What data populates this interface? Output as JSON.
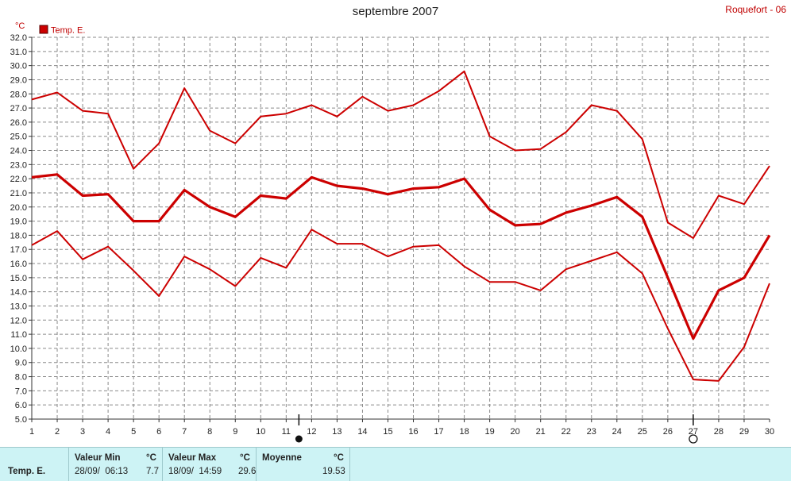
{
  "header": {
    "title": "septembre 2007",
    "station": "Roquefort - 06"
  },
  "chart_data": {
    "type": "line",
    "title": "septembre 2007",
    "ylabel": "°C",
    "ylim": [
      5.0,
      32.0
    ],
    "y_ticks": [
      "5.0",
      "6.0",
      "7.0",
      "8.0",
      "9.0",
      "10.0",
      "11.0",
      "12.0",
      "13.0",
      "14.0",
      "15.0",
      "16.0",
      "17.0",
      "18.0",
      "19.0",
      "20.0",
      "21.0",
      "22.0",
      "23.0",
      "24.0",
      "25.0",
      "26.0",
      "27.0",
      "28.0",
      "29.0",
      "30.0",
      "31.0",
      "32.0"
    ],
    "x": [
      1,
      2,
      3,
      4,
      5,
      6,
      7,
      8,
      9,
      10,
      11,
      12,
      13,
      14,
      15,
      16,
      17,
      18,
      19,
      20,
      21,
      22,
      23,
      24,
      25,
      26,
      27,
      28,
      29,
      30
    ],
    "grid": true,
    "legend": "top-left",
    "legend_label": "Temp. E.",
    "series_color": "#cc0000",
    "series": [
      {
        "values": [
          27.6,
          28.1,
          26.8,
          26.6,
          22.7,
          24.5,
          28.4,
          25.4,
          24.5,
          26.4,
          26.6,
          27.2,
          26.4,
          27.8,
          26.8,
          27.2,
          28.2,
          29.6,
          25.0,
          24.0,
          24.1,
          25.3,
          27.2,
          26.8,
          24.8,
          18.9,
          17.8,
          20.8,
          20.2,
          22.9
        ]
      },
      {
        "values": [
          22.1,
          22.3,
          20.8,
          20.9,
          19.0,
          19.0,
          21.2,
          20.0,
          19.3,
          20.8,
          20.6,
          22.1,
          21.5,
          21.3,
          20.9,
          21.3,
          21.4,
          22.0,
          19.8,
          18.7,
          18.8,
          19.6,
          20.1,
          20.7,
          19.3,
          15.0,
          10.7,
          14.1,
          15.0,
          18.0
        ]
      },
      {
        "values": [
          17.3,
          18.3,
          16.3,
          17.2,
          15.5,
          13.7,
          16.5,
          15.6,
          14.4,
          16.4,
          15.7,
          18.4,
          17.4,
          17.4,
          16.5,
          17.2,
          17.3,
          15.8,
          14.7,
          14.7,
          14.1,
          15.6,
          16.2,
          16.8,
          15.3,
          11.4,
          7.8,
          7.7,
          10.1,
          14.6
        ]
      }
    ],
    "markers": [
      {
        "day": 11.5,
        "symbol": "filled-circle"
      },
      {
        "day": 27,
        "symbol": "open-circle"
      }
    ]
  },
  "summary": {
    "row_label": "Temp. E.",
    "min": {
      "header": "Valeur Min",
      "unit": "°C",
      "date": "28/09/  06:13",
      "value": "7.7"
    },
    "max": {
      "header": "Valeur Max",
      "unit": "°C",
      "date": "18/09/  14:59",
      "value": "29.6"
    },
    "mean": {
      "header": "Moyenne",
      "unit": "°C",
      "value": "19.53"
    }
  }
}
